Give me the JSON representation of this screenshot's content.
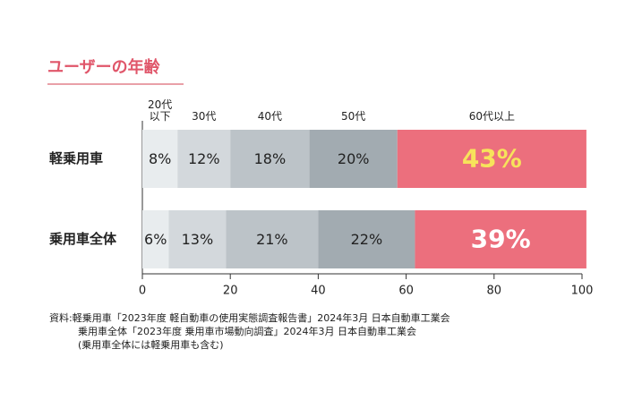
{
  "chart_data": {
    "type": "stacked-bar-horizontal",
    "title": "ユーザーの年齢",
    "categories": [
      "軽乗用車",
      "乗用車全体"
    ],
    "series": [
      {
        "name": "20代\n以下",
        "color": "#e8ecee",
        "values": [
          8,
          6
        ],
        "value_labels": [
          "8%",
          "6%"
        ]
      },
      {
        "name": "30代",
        "color": "#d3d8dc",
        "values": [
          12,
          13
        ],
        "value_labels": [
          "12%",
          "13%"
        ]
      },
      {
        "name": "40代",
        "color": "#bcc3c8",
        "values": [
          18,
          21
        ],
        "value_labels": [
          "18%",
          "21%"
        ]
      },
      {
        "name": "50代",
        "color": "#a2abb1",
        "values": [
          20,
          22
        ],
        "value_labels": [
          "20%",
          "22%"
        ]
      },
      {
        "name": "60代以上",
        "color": "#ec6f7d",
        "values": [
          43,
          39
        ],
        "value_labels": [
          "43%",
          "39%"
        ]
      }
    ],
    "xlim": [
      0,
      100
    ],
    "xticks": [
      0,
      20,
      40,
      60,
      80,
      100
    ],
    "source": [
      "資料:軽乗用車「2023年度 軽自動車の使用実態調査報告書」2024年3月 日本自動車工業会",
      "乗用車全体「2023年度 乗用車市場動向調査」2024年3月 日本自動車工業会",
      "(乗用車全体には軽乗用車も含む)"
    ]
  }
}
